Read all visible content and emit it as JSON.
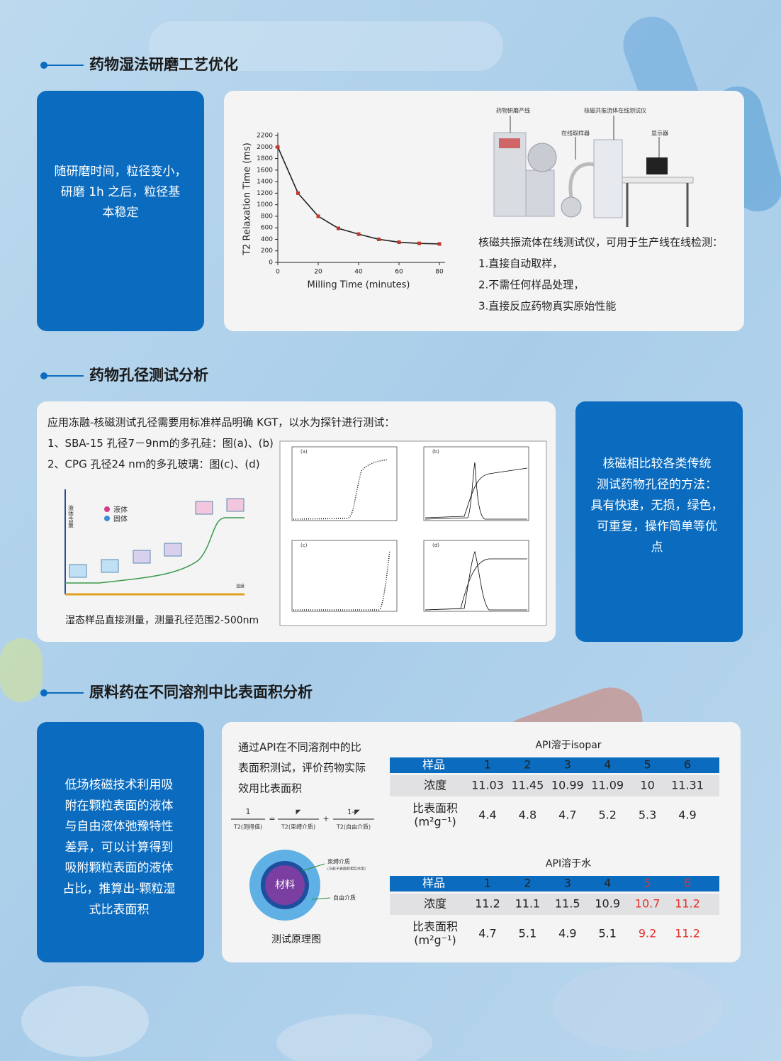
{
  "sections": [
    {
      "title": "药物湿法研磨工艺优化",
      "summary": [
        "随研磨时间，粒径变小，",
        "研磨 1h 之后，粒径基",
        "本稳定"
      ],
      "equipment_labels": [
        "药物研磨产线",
        "核磁共振流体在线测试仪",
        "在线取样器",
        "显示器"
      ],
      "notes": [
        "核磁共振流体在线测试仪，可用于生产线在线检测：",
        "1.直接自动取样，",
        "2.不需任何样品处理，",
        "3.直接反应药物真实原始性能"
      ]
    },
    {
      "title": "药物孔径测试分析",
      "intro": [
        "应用冻融-核磁测试孔径需要用标准样品明确 KGT，以水为探针进行测试：",
        "1、SBA-15  孔径7－9nm的多孔硅：图(a)、(b)",
        "2、CPG   孔径24 nm的多孔玻璃：图(c)、(d)"
      ],
      "illustration": {
        "y_axis": "液体含量",
        "legend": [
          "液体",
          "固体"
        ],
        "x_axis": "温度"
      },
      "caption": "湿态样品直接测量，测量孔径范围2-500nm",
      "panels": [
        "(a)",
        "(b)",
        "(c)",
        "(d)"
      ],
      "summary": [
        "核磁相比较各类传统",
        "测试药物孔径的方法：",
        "具有快速，无损，绿色，",
        "可重复，操作简单等优",
        "点"
      ]
    },
    {
      "title": "原料药在不同溶剂中比表面积分析",
      "summary": [
        "低场核磁技术利用吸",
        "附在颗粒表面的液体",
        "与自由液体弛豫特性",
        "差异，可以计算得到",
        "吸附颗粒表面的液体",
        "占比，推算出-颗粒湿",
        "式比表面积"
      ],
      "intro": [
        "通过API在不同溶剂中的比",
        "表面积测试，评价药物实际",
        "效用比表面积"
      ],
      "formula": {
        "lhs_num": "1",
        "lhs_den": "T2(测得值)",
        "t1_num": "◤",
        "t1_den": "T2(束缚介质)",
        "plus": "+",
        "t2_num": "1-◤",
        "t2_den": "T2(自由介质)",
        "eq": "="
      },
      "diagram": {
        "core": "材料",
        "bound": "束缚介质",
        "bound_note": "(与粒子表面有相互作用)",
        "free": "自由介质",
        "caption": "测试原理图"
      },
      "tables": [
        {
          "title": "API溶于isopar",
          "header": {
            "label": "样品",
            "values": [
              1,
              2,
              3,
              4,
              5,
              6
            ]
          },
          "rows": [
            {
              "label": [
                "浓度"
              ],
              "values": [
                11.03,
                11.45,
                10.99,
                11.09,
                10,
                11.31
              ]
            },
            {
              "label": [
                "比表面积",
                "(m²g⁻¹)"
              ],
              "values": [
                4.4,
                4.8,
                4.7,
                5.2,
                5.3,
                4.9
              ]
            }
          ]
        },
        {
          "title": "API溶于水",
          "header": {
            "label": "样品",
            "values": [
              1,
              2,
              3,
              4,
              5,
              6
            ]
          },
          "rows": [
            {
              "label": [
                "浓度"
              ],
              "values": [
                11.2,
                11.1,
                11.5,
                10.9,
                10.7,
                11.2
              ]
            },
            {
              "label": [
                "比表面积",
                "(m²g⁻¹)"
              ],
              "values": [
                4.7,
                5.1,
                4.9,
                5.1,
                9.2,
                11.2
              ]
            }
          ]
        }
      ]
    }
  ],
  "chart_data": {
    "type": "line",
    "x_label": "Milling Time (minutes)",
    "y_label": "T2 Relaxation Time (ms)",
    "x": [
      0,
      10,
      20,
      30,
      40,
      50,
      60,
      70,
      80
    ],
    "series": [
      {
        "color": "#c0392b",
        "line_color": "#222222",
        "values": [
          2000,
          1200,
          800,
          590,
          490,
          400,
          350,
          330,
          320
        ]
      }
    ],
    "xlim": [
      0,
      80
    ],
    "xticks": [
      0,
      20,
      40,
      60,
      80
    ],
    "ylim": [
      0,
      2200
    ],
    "yticks": [
      0,
      200,
      400,
      600,
      800,
      1000,
      1200,
      1400,
      1600,
      1800,
      2000,
      2200
    ]
  }
}
